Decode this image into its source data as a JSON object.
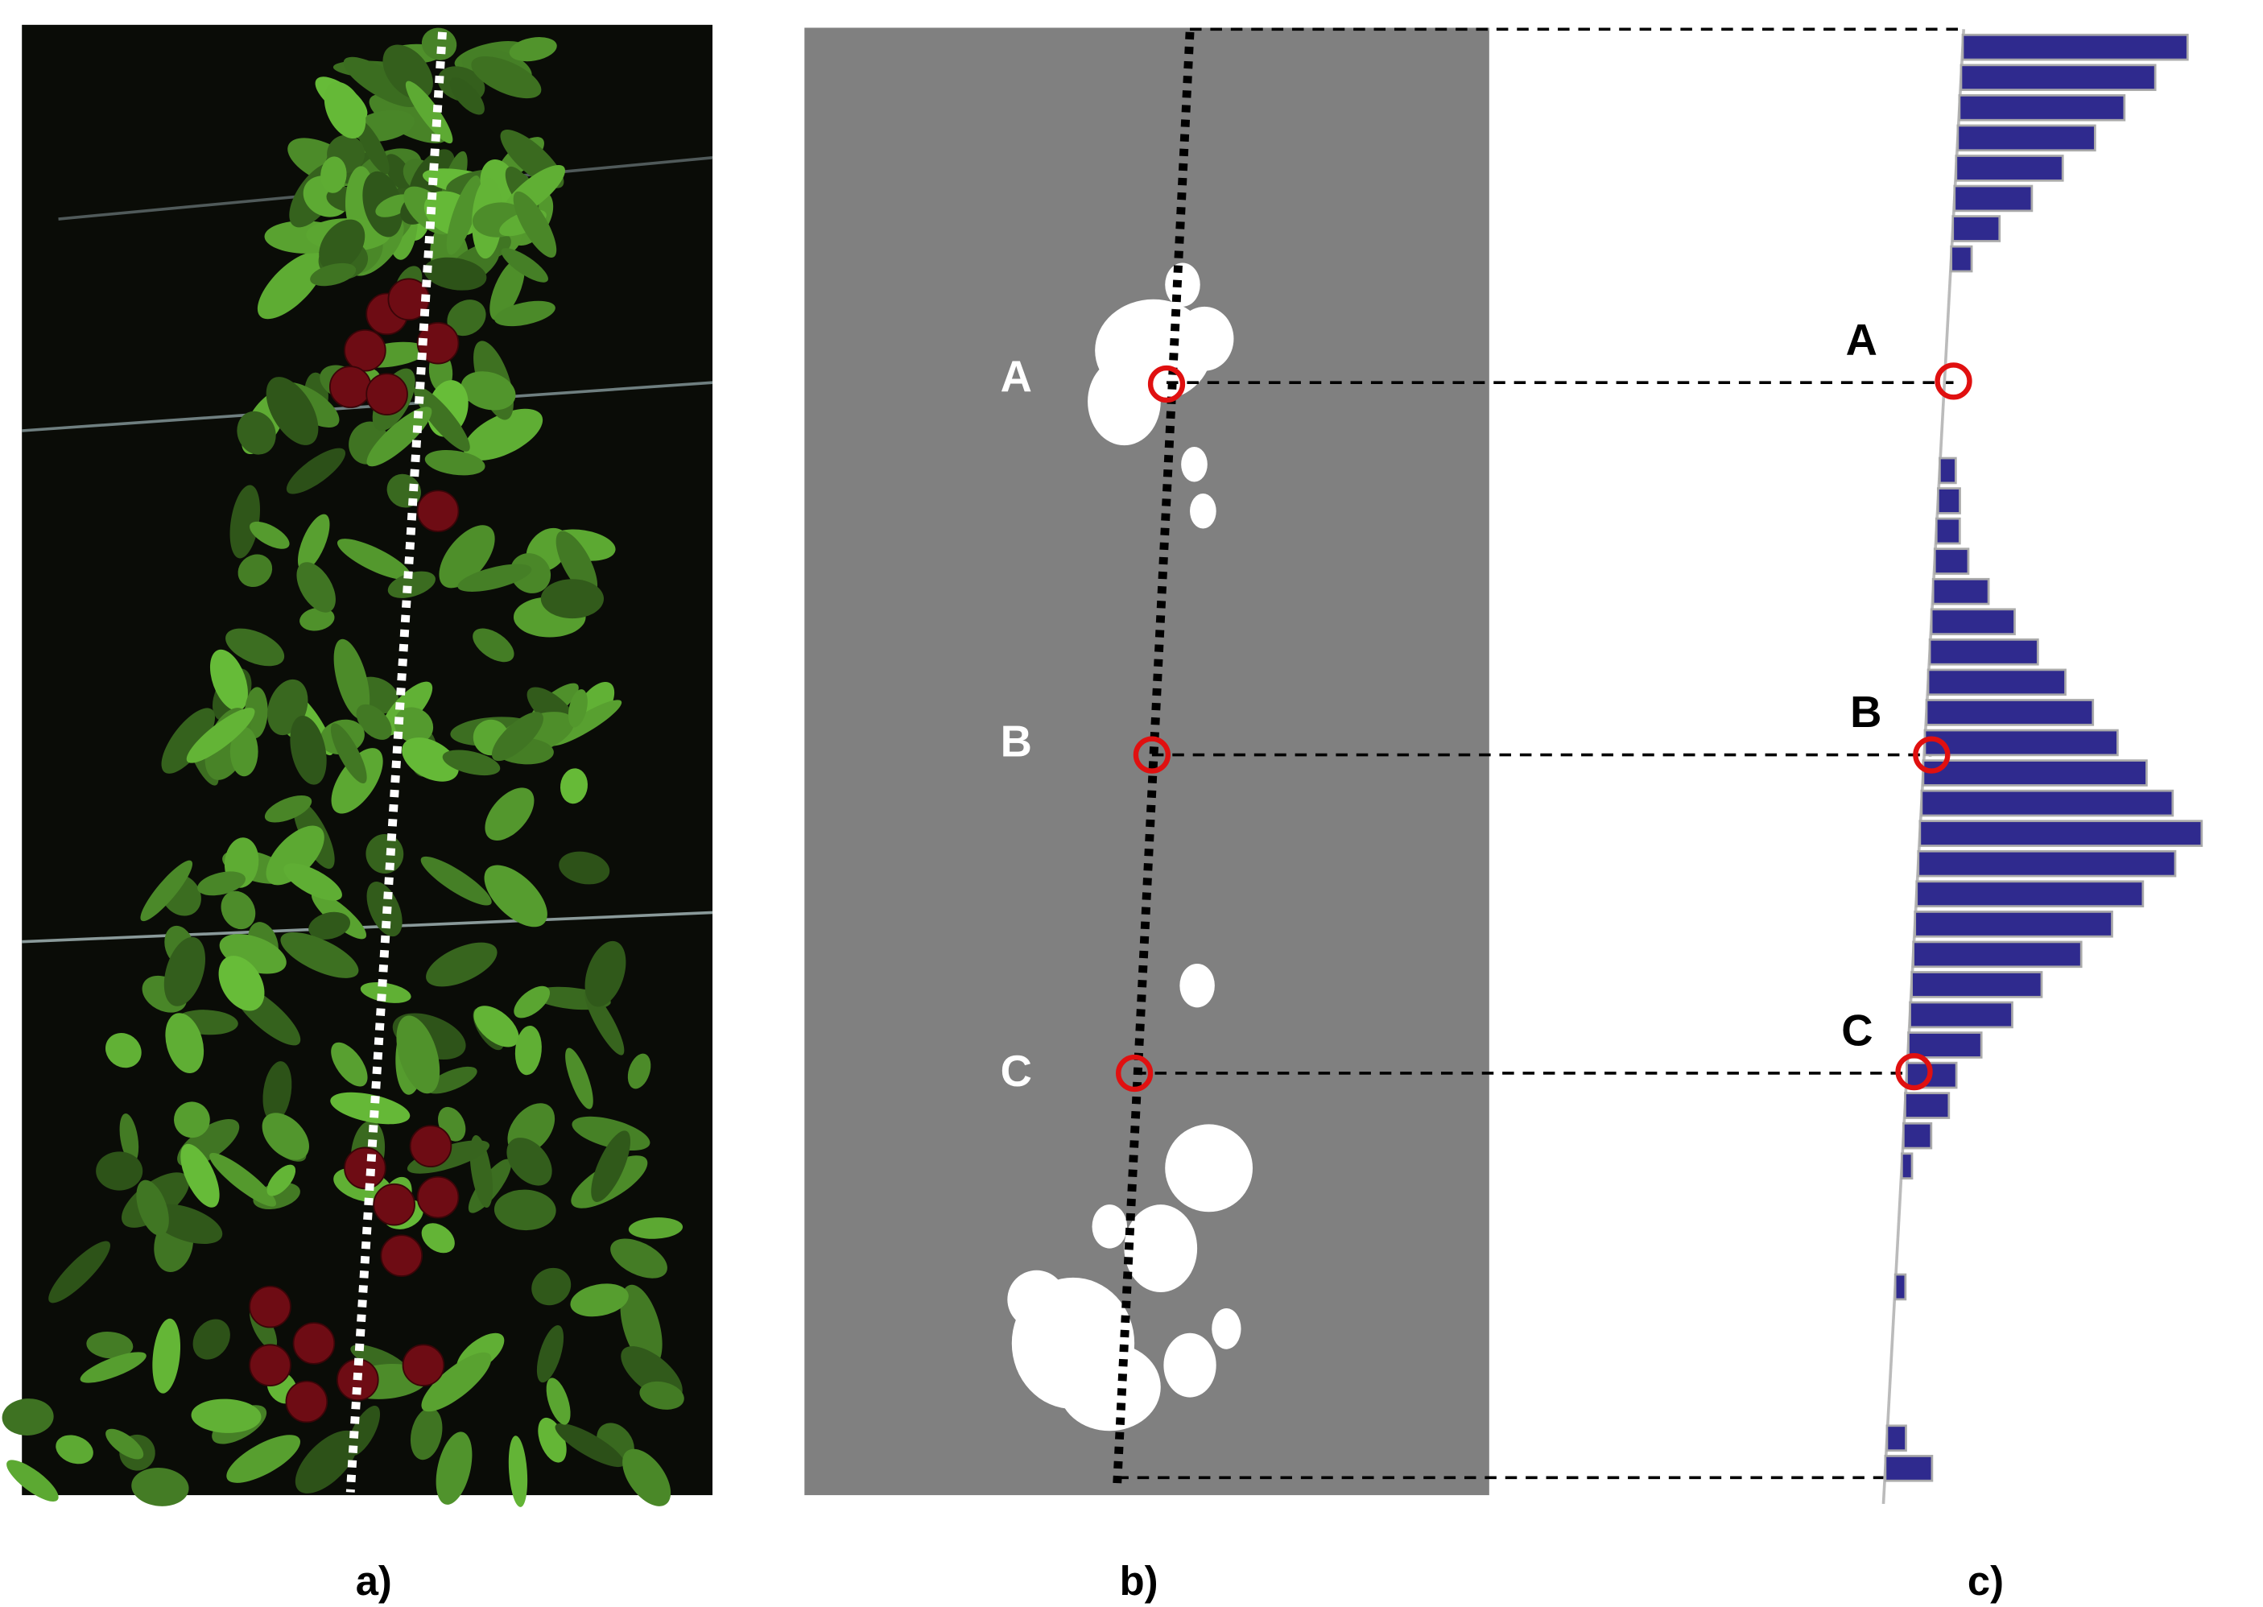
{
  "panel_a": {
    "caption": "a)"
  },
  "panel_b": {
    "caption": "b)",
    "point_labels": [
      "A",
      "B",
      "C"
    ]
  },
  "panel_c": {
    "caption": "c)",
    "point_labels": [
      "A",
      "B",
      "C"
    ],
    "histogram": {
      "type": "bar",
      "values": [
        154,
        133,
        113,
        94,
        73,
        53,
        32,
        14,
        0,
        0,
        0,
        0,
        0,
        0,
        11,
        15,
        16,
        23,
        38,
        57,
        74,
        94,
        114,
        132,
        153,
        172,
        193,
        176,
        155,
        135,
        115,
        89,
        70,
        50,
        34,
        30,
        19,
        7,
        0,
        0,
        0,
        7,
        0,
        0,
        0,
        0,
        13,
        32
      ],
      "color": "#2f2a8e"
    }
  }
}
